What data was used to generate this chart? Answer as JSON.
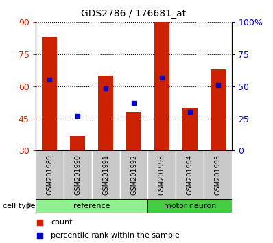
{
  "title": "GDS2786 / 176681_at",
  "samples": [
    "GSM201989",
    "GSM201990",
    "GSM201991",
    "GSM201992",
    "GSM201993",
    "GSM201994",
    "GSM201995"
  ],
  "count_values": [
    83,
    37,
    65,
    48,
    90,
    50,
    68
  ],
  "percentile_values": [
    55,
    27,
    48,
    37,
    57,
    30,
    51
  ],
  "ylim_left": [
    30,
    90
  ],
  "ylim_right": [
    0,
    100
  ],
  "yticks_left": [
    30,
    45,
    60,
    75,
    90
  ],
  "yticks_right": [
    0,
    25,
    50,
    75,
    100
  ],
  "yticklabels_right": [
    "0",
    "25",
    "50",
    "75",
    "100%"
  ],
  "yticklabels_left": [
    "30",
    "45",
    "60",
    "75",
    "90"
  ],
  "bar_color": "#CC2200",
  "dot_color": "#0000CC",
  "bar_width": 0.55,
  "dot_size": 25,
  "ref_color": "#90EE90",
  "motor_color": "#44CC44",
  "x_tick_bg": "#c8c8c8",
  "legend_count": "count",
  "legend_percentile": "percentile rank within the sample",
  "cell_type_label": "cell type",
  "ref_label": "reference",
  "motor_label": "motor neuron",
  "ref_count": 4,
  "motor_count": 3
}
